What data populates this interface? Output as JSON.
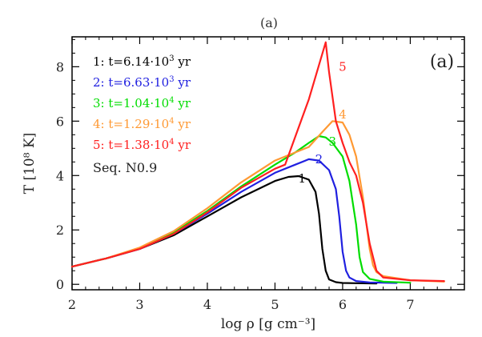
{
  "caption": "(a)",
  "chart_data": {
    "type": "line",
    "panel_label": "(a)",
    "xlabel": "log ρ [g cm⁻³]",
    "ylabel": "T [10⁸ K]",
    "xlim": [
      2,
      7.8
    ],
    "ylim": [
      -0.2,
      9.1
    ],
    "xticks": [
      2,
      3,
      4,
      5,
      6,
      7
    ],
    "yticks": [
      0,
      2,
      4,
      6,
      8
    ],
    "legend_position": "top-left",
    "sequence_label": "Seq. N0.9",
    "series": [
      {
        "name": "1: t=6.14·10³ yr",
        "name_pre": "1: t=6.14·10",
        "name_exp": "3",
        "name_post": " yr",
        "curve_label": "1",
        "curve_label_at": [
          5.4,
          3.75
        ],
        "color": "#000000",
        "x": [
          2.0,
          2.5,
          3.0,
          3.5,
          4.0,
          4.5,
          5.0,
          5.2,
          5.35,
          5.5,
          5.6,
          5.65,
          5.7,
          5.75,
          5.8,
          5.9,
          6.0,
          6.2,
          6.5
        ],
        "y": [
          0.65,
          0.95,
          1.3,
          1.8,
          2.5,
          3.2,
          3.8,
          3.95,
          3.98,
          3.85,
          3.4,
          2.6,
          1.3,
          0.5,
          0.18,
          0.08,
          0.05,
          0.04,
          0.03
        ]
      },
      {
        "name": "2: t=6.63·10³ yr",
        "name_pre": "2: t=6.63·10",
        "name_exp": "3",
        "name_post": " yr",
        "curve_label": "2",
        "curve_label_at": [
          5.65,
          4.45
        ],
        "color": "#2020e0",
        "x": [
          2.0,
          2.5,
          3.0,
          3.5,
          4.0,
          4.5,
          5.0,
          5.3,
          5.5,
          5.65,
          5.8,
          5.9,
          5.95,
          6.0,
          6.05,
          6.1,
          6.2,
          6.4,
          6.8
        ],
        "y": [
          0.65,
          0.95,
          1.3,
          1.85,
          2.6,
          3.4,
          4.1,
          4.4,
          4.6,
          4.55,
          4.2,
          3.5,
          2.5,
          1.2,
          0.5,
          0.25,
          0.12,
          0.07,
          0.05
        ]
      },
      {
        "name": "3: t=1.04·10⁴ yr",
        "name_pre": "3: t=1.04·10",
        "name_exp": "4",
        "name_post": " yr",
        "curve_label": "3",
        "curve_label_at": [
          5.85,
          5.1
        ],
        "color": "#00dd00",
        "x": [
          2.0,
          2.5,
          3.0,
          3.5,
          4.0,
          4.5,
          5.0,
          5.3,
          5.5,
          5.65,
          5.75,
          5.85,
          6.0,
          6.1,
          6.2,
          6.25,
          6.3,
          6.4,
          6.6,
          7.0
        ],
        "y": [
          0.65,
          0.95,
          1.32,
          1.9,
          2.7,
          3.6,
          4.4,
          4.85,
          5.2,
          5.45,
          5.4,
          5.2,
          4.7,
          3.8,
          2.2,
          1.0,
          0.45,
          0.2,
          0.1,
          0.06
        ]
      },
      {
        "name": "4: t=1.29·10⁴ yr",
        "name_pre": "4: t=1.29·10",
        "name_exp": "4",
        "name_post": " yr",
        "curve_label": "4",
        "curve_label_at": [
          6.0,
          6.1
        ],
        "color": "#ff9933",
        "x": [
          2.0,
          2.5,
          3.0,
          3.5,
          4.0,
          4.5,
          5.0,
          5.3,
          5.5,
          5.7,
          5.85,
          6.0,
          6.1,
          6.2,
          6.3,
          6.4,
          6.45,
          6.5,
          6.6,
          7.0,
          7.5
        ],
        "y": [
          0.65,
          0.95,
          1.35,
          1.95,
          2.8,
          3.75,
          4.55,
          4.85,
          5.05,
          5.6,
          6.0,
          5.95,
          5.5,
          4.7,
          3.2,
          1.3,
          0.7,
          0.45,
          0.3,
          0.15,
          0.1
        ]
      },
      {
        "name": "5: t=1.38·10⁴ yr",
        "name_pre": "5: t=1.38·10",
        "name_exp": "4",
        "name_post": " yr",
        "curve_label": "5",
        "curve_label_at": [
          6.0,
          7.85
        ],
        "color": "#ff2020",
        "x": [
          2.0,
          2.5,
          3.0,
          3.5,
          4.0,
          4.5,
          5.0,
          5.15,
          5.5,
          5.75,
          5.8,
          5.9,
          6.0,
          6.1,
          6.2,
          6.3,
          6.4,
          6.5,
          6.6,
          7.0,
          7.5
        ],
        "y": [
          0.65,
          0.95,
          1.3,
          1.85,
          2.65,
          3.55,
          4.25,
          4.4,
          6.8,
          8.9,
          7.8,
          6.0,
          5.2,
          4.5,
          4.0,
          3.0,
          1.5,
          0.5,
          0.25,
          0.15,
          0.12
        ]
      }
    ]
  }
}
